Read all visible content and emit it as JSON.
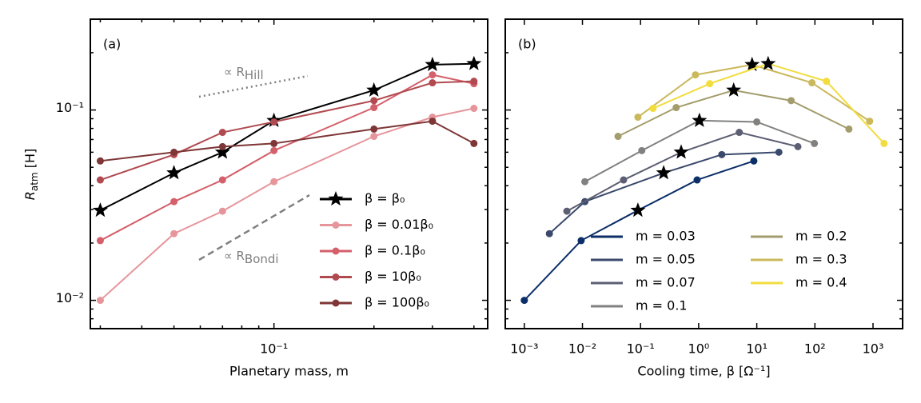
{
  "chart_data": [
    {
      "type": "line",
      "panel_label": "(a)",
      "xlabel": "Planetary mass, m",
      "ylabel": {
        "text": "R",
        "subscript": "atm",
        "suffix": " [H]"
      },
      "xlog": true,
      "ylog": true,
      "xlim": [
        0.028,
        0.44
      ],
      "ylim": [
        0.0071,
        0.3
      ],
      "xticks": [
        {
          "value": 0.1,
          "label": "10⁻¹"
        }
      ],
      "xminorticks": [
        0.03,
        0.04,
        0.05,
        0.06,
        0.07,
        0.08,
        0.09,
        0.2,
        0.3,
        0.4
      ],
      "yticks": [
        {
          "value": 0.01,
          "label": "10⁻²"
        },
        {
          "value": 0.1,
          "label": "10⁻¹"
        }
      ],
      "yminorticks": [
        0.008,
        0.009,
        0.02,
        0.03,
        0.04,
        0.05,
        0.06,
        0.07,
        0.08,
        0.09,
        0.2,
        0.3
      ],
      "ytick_labels": true,
      "legend_loc": "lower right",
      "legend_columns": 1,
      "annotations": [
        {
          "text": "∝ R",
          "subscript": "Hill"
        },
        {
          "text": "∝ R",
          "subscript": "Bondi"
        }
      ],
      "x": [
        0.03,
        0.05,
        0.07,
        0.1,
        0.2,
        0.3,
        0.4
      ],
      "series": [
        {
          "name": "β = β₀",
          "color": "#000000",
          "marker": "star",
          "values": [
            0.0297,
            0.0467,
            0.06,
            0.088,
            0.127,
            0.173,
            0.175
          ]
        },
        {
          "name": "β = 0.01β₀",
          "color": "#e6959b",
          "marker": "circle",
          "values": [
            0.01,
            0.0224,
            0.0294,
            0.042,
            0.0727,
            0.0917,
            0.102
          ]
        },
        {
          "name": "β = 0.1β₀",
          "color": "#d3606b",
          "marker": "circle",
          "values": [
            0.0206,
            0.033,
            0.0429,
            0.0612,
            0.103,
            0.153,
            0.1375
          ]
        },
        {
          "name": "β = 10β₀",
          "color": "#b04a50",
          "marker": "circle",
          "values": [
            0.0429,
            0.0583,
            0.0763,
            0.0866,
            0.112,
            0.139,
            0.1415
          ]
        },
        {
          "name": "β = 100β₀",
          "color": "#7e3636",
          "marker": "circle",
          "values": [
            0.054,
            0.06,
            0.0642,
            0.0667,
            0.0794,
            0.0873,
            0.0667
          ]
        }
      ]
    },
    {
      "type": "line",
      "panel_label": "(b)",
      "xlabel": "Cooling time, β [Ω⁻¹]",
      "xlog": true,
      "ylog": true,
      "xlim": [
        0.00047,
        3230
      ],
      "ylim": [
        0.0071,
        0.3
      ],
      "xticks": [
        {
          "value": 0.001,
          "label": "10⁻³"
        },
        {
          "value": 0.01,
          "label": "10⁻²"
        },
        {
          "value": 0.1,
          "label": "10⁻¹"
        },
        {
          "value": 1,
          "label": "10⁰"
        },
        {
          "value": 10,
          "label": "10¹"
        },
        {
          "value": 100,
          "label": "10²"
        },
        {
          "value": 1000,
          "label": "10³"
        }
      ],
      "xminorticks": [],
      "yticks": [
        0.01,
        0.1
      ],
      "yminorticks": [
        0.008,
        0.009,
        0.02,
        0.03,
        0.04,
        0.05,
        0.06,
        0.07,
        0.08,
        0.09,
        0.2,
        0.3
      ],
      "ytick_labels": false,
      "legend_loc": "lower right",
      "legend_columns": 2,
      "series": [
        {
          "name": "m = 0.03",
          "color": "#0c2f69",
          "star_index": 2,
          "x": [
            0.001,
            0.0095,
            0.09,
            0.94,
            8.9
          ],
          "values": [
            0.01,
            0.0206,
            0.0297,
            0.0429,
            0.054
          ]
        },
        {
          "name": "m = 0.05",
          "color": "#3b4a6c",
          "star_index": 2,
          "x": [
            0.0027,
            0.011,
            0.25,
            2.5,
            24
          ],
          "values": [
            0.0224,
            0.033,
            0.0467,
            0.0583,
            0.06
          ]
        },
        {
          "name": "m = 0.07",
          "color": "#5c5f73",
          "star_index": 2,
          "x": [
            0.0054,
            0.051,
            0.5,
            5,
            51
          ],
          "values": [
            0.0294,
            0.0429,
            0.06,
            0.0763,
            0.0642
          ]
        },
        {
          "name": "m = 0.1",
          "color": "#828180",
          "star_index": 2,
          "x": [
            0.011,
            0.105,
            1.03,
            10,
            98
          ],
          "values": [
            0.042,
            0.0612,
            0.088,
            0.0866,
            0.0667
          ]
        },
        {
          "name": "m = 0.2",
          "color": "#a39c6c",
          "star_index": 2,
          "x": [
            0.041,
            0.41,
            4,
            39,
            385
          ],
          "values": [
            0.0727,
            0.103,
            0.127,
            0.112,
            0.0794
          ]
        },
        {
          "name": "m = 0.3",
          "color": "#cbb85b",
          "star_index": 2,
          "x": [
            0.09,
            0.88,
            8.3,
            89,
            875
          ],
          "values": [
            0.0917,
            0.153,
            0.173,
            0.139,
            0.0873
          ]
        },
        {
          "name": "m = 0.4",
          "color": "#f2dc3e",
          "star_index": 2,
          "x": [
            0.164,
            1.55,
            15.7,
            158,
            1550
          ],
          "values": [
            0.102,
            0.1375,
            0.175,
            0.1415,
            0.0667
          ]
        }
      ]
    }
  ]
}
